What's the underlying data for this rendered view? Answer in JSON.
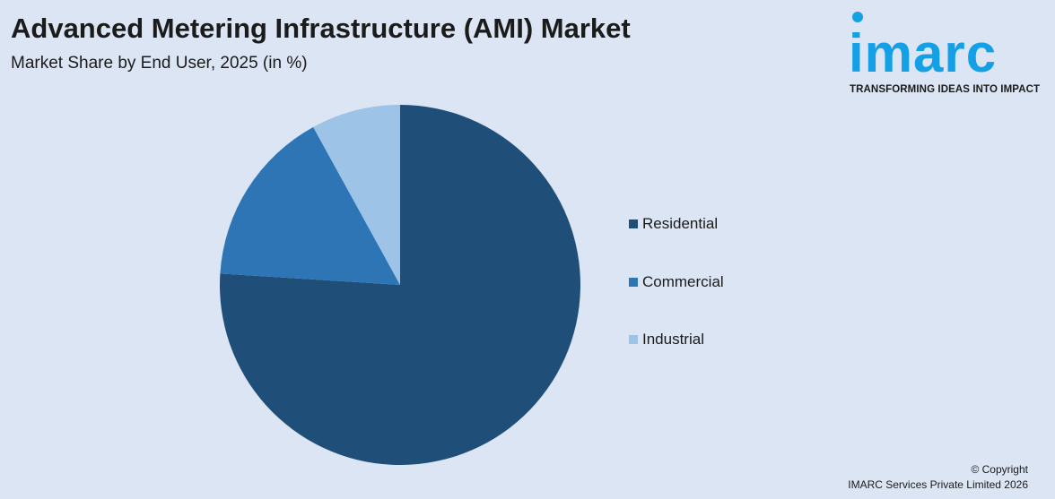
{
  "header": {
    "title": "Advanced Metering Infrastructure (AMI) Market",
    "subtitle": "Market Share by End User, 2025 (in %)"
  },
  "logo": {
    "wordmark": "imarc",
    "tagline": "TRANSFORMING IDEAS INTO IMPACT",
    "color": "#14a0e6"
  },
  "chart_data": {
    "type": "pie",
    "title": "Advanced Metering Infrastructure (AMI) Market",
    "subtitle": "Market Share by End User, 2025 (in %)",
    "categories": [
      "Residential",
      "Commercial",
      "Industrial"
    ],
    "values": [
      76,
      16,
      8
    ],
    "colors": [
      "#1f4e79",
      "#2e75b6",
      "#9dc3e6"
    ],
    "start": "12 o'clock",
    "direction": "clockwise",
    "legend": "right"
  },
  "footer": {
    "copyright": "© Copyright",
    "company": "IMARC Services Private Limited 2026"
  }
}
